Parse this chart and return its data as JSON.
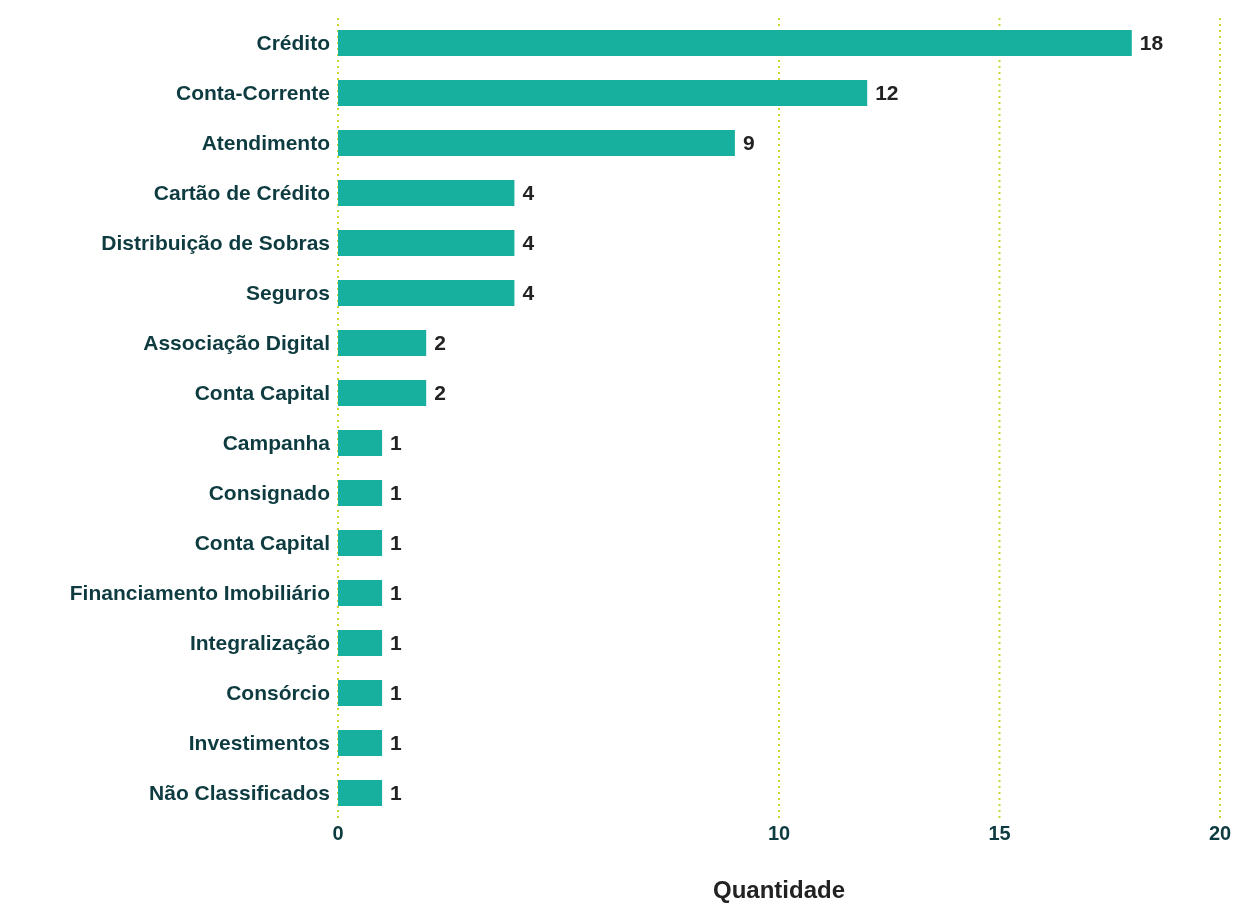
{
  "chart_data": {
    "type": "bar",
    "orientation": "horizontal",
    "xlabel": "Quantidade",
    "categories": [
      "Crédito",
      "Conta-Corrente",
      "Atendimento",
      "Cartão de Crédito",
      "Distribuição de Sobras",
      "Seguros",
      "Associação Digital",
      "Conta Capital",
      "Campanha",
      "Consignado",
      "Conta Capital",
      "Financiamento Imobiliário",
      "Integralização",
      "Consórcio",
      "Investimentos",
      "Não Classificados"
    ],
    "values": [
      18,
      12,
      9,
      4,
      4,
      4,
      2,
      2,
      1,
      1,
      1,
      1,
      1,
      1,
      1,
      1
    ],
    "color": "#17b09e",
    "xlim": [
      0,
      20
    ],
    "xticks": [
      0,
      10,
      15,
      20
    ],
    "grid": "x",
    "data_labels": true
  }
}
